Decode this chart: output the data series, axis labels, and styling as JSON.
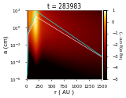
{
  "title": "t = 283983",
  "xlabel": "r ( AU )",
  "ylabel": "a (cm)",
  "colorbar_label": "log σ(g cm⁻²)",
  "r_min": 0,
  "r_max": 1500,
  "a_min_log": -6,
  "a_max_log": 2,
  "vmin": -5,
  "vmax": 1,
  "background_color": "#0a0000",
  "title_fontsize": 5.5,
  "label_fontsize": 5.0,
  "tick_fontsize": 4.0,
  "colorbar_tick_fontsize": 3.8,
  "colorbar_ticks": [
    -5,
    -4,
    -3,
    -2,
    -1,
    0,
    1
  ],
  "r_ticks": [
    0,
    250,
    500,
    750,
    1000,
    1250,
    1500
  ],
  "a_ticks_log": [
    -6,
    -4,
    -2,
    0,
    2
  ]
}
